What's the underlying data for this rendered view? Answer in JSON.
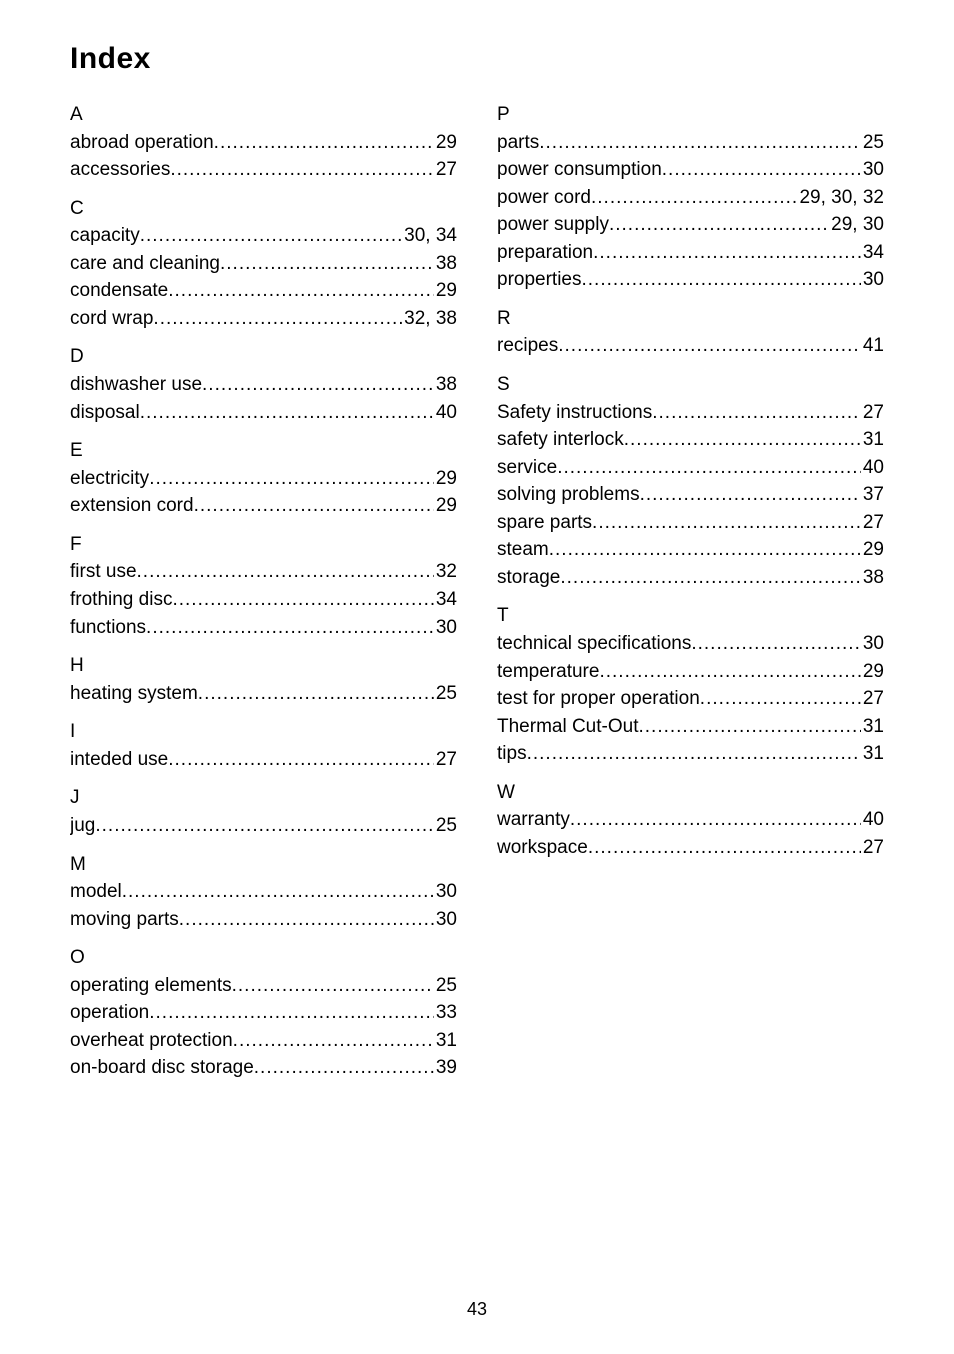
{
  "title": "Index",
  "footer_page": "43",
  "left_groups": [
    {
      "letter": "A",
      "entries": [
        {
          "label": "abroad operation",
          "pages": "29"
        },
        {
          "label": "accessories",
          "pages": "27"
        }
      ]
    },
    {
      "letter": "C",
      "entries": [
        {
          "label": "capacity ",
          "pages": "30, 34"
        },
        {
          "label": "care and cleaning",
          "pages": "38"
        },
        {
          "label": "condensate",
          "pages": "29"
        },
        {
          "label": "cord wrap",
          "pages": "32, 38"
        }
      ]
    },
    {
      "letter": "D",
      "entries": [
        {
          "label": "dishwasher use ",
          "pages": "38"
        },
        {
          "label": "disposal ",
          "pages": "40"
        }
      ]
    },
    {
      "letter": "E",
      "entries": [
        {
          "label": "electricity ",
          "pages": "29"
        },
        {
          "label": "extension cord",
          "pages": "29"
        }
      ]
    },
    {
      "letter": "F",
      "entries": [
        {
          "label": "first use",
          "pages": "32"
        },
        {
          "label": "frothing disc",
          "pages": "34"
        },
        {
          "label": "functions ",
          "pages": "30"
        }
      ]
    },
    {
      "letter": "H",
      "entries": [
        {
          "label": "heating system ",
          "pages": "25"
        }
      ]
    },
    {
      "letter": "I",
      "entries": [
        {
          "label": "inteded use ",
          "pages": "27"
        }
      ]
    },
    {
      "letter": "J",
      "entries": [
        {
          "label": "jug ",
          "pages": "25"
        }
      ]
    },
    {
      "letter": "M",
      "entries": [
        {
          "label": "model ",
          "pages": "30"
        },
        {
          "label": "moving parts  ",
          "pages": "30"
        }
      ]
    },
    {
      "letter": "O",
      "entries": [
        {
          "label": "operating elements ",
          "pages": "25"
        },
        {
          "label": "operation ",
          "pages": "33"
        },
        {
          "label": "overheat protection ",
          "pages": "31"
        },
        {
          "label": "on-board disc storage  ",
          "pages": "39"
        }
      ]
    }
  ],
  "right_groups": [
    {
      "letter": "P",
      "entries": [
        {
          "label": "parts ",
          "pages": " 25"
        },
        {
          "label": "power consumption ",
          "pages": " 30"
        },
        {
          "label": "power cord ",
          "pages": "29, 30, 32"
        },
        {
          "label": "power supply ",
          "pages": "29, 30"
        },
        {
          "label": "preparation ",
          "pages": " 34"
        },
        {
          "label": "properties ",
          "pages": " 30"
        }
      ]
    },
    {
      "letter": "R",
      "entries": [
        {
          "label": "recipes",
          "pages": " 41"
        }
      ]
    },
    {
      "letter": "S",
      "entries": [
        {
          "label": "Safety instructions ",
          "pages": " 27"
        },
        {
          "label": "safety interlock",
          "pages": " 31"
        },
        {
          "label": "service",
          "pages": " 40"
        },
        {
          "label": "solving problems",
          "pages": " 37"
        },
        {
          "label": "spare parts ",
          "pages": " 27"
        },
        {
          "label": "steam ",
          "pages": " 29"
        },
        {
          "label": "storage",
          "pages": " 38"
        }
      ]
    },
    {
      "letter": "T",
      "entries": [
        {
          "label": "technical specifications",
          "pages": " 30"
        },
        {
          "label": "temperature",
          "pages": " 29"
        },
        {
          "label": "test for proper operation",
          "pages": " 27"
        },
        {
          "label": "Thermal Cut-Out",
          "pages": " 31"
        },
        {
          "label": "tips",
          "pages": " 31"
        }
      ]
    },
    {
      "letter": "W",
      "entries": [
        {
          "label": "warranty ",
          "pages": " 40"
        },
        {
          "label": "workspace ",
          "pages": " 27"
        }
      ]
    }
  ]
}
